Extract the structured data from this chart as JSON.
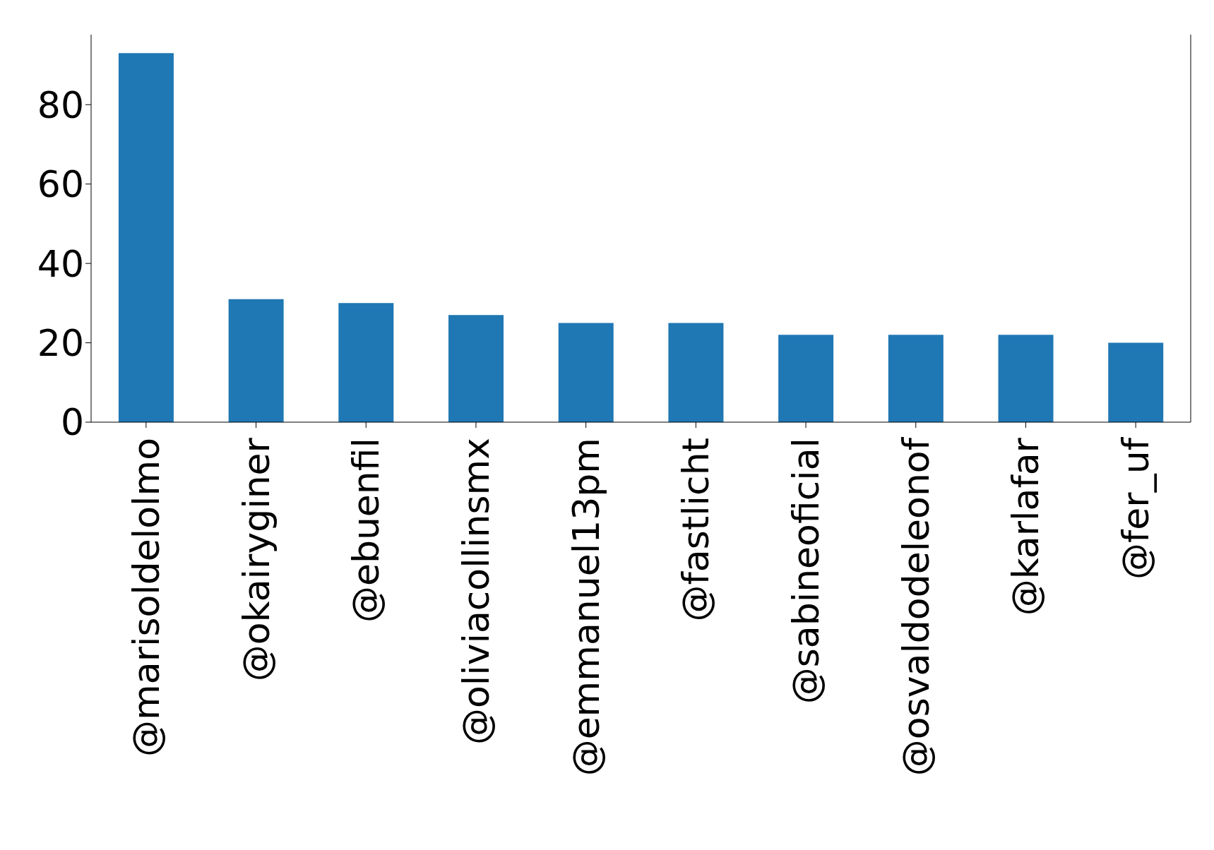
{
  "chart_data": {
    "type": "bar",
    "categories": [
      "@marisoldelolmo",
      "@okairyginer",
      "@ebuenfil",
      "@oliviacollinsmx",
      "@emmanuel13pm",
      "@fastlicht",
      "@sabineoficial",
      "@osvaldodeleonof",
      "@karlafar",
      "@fer_uf"
    ],
    "values": [
      93,
      31,
      30,
      27,
      25,
      25,
      22,
      22,
      22,
      20
    ],
    "color": "#1f77b4",
    "ylim": [
      0,
      97.65
    ],
    "yticks": [
      0,
      20,
      40,
      60,
      80
    ],
    "grid": false,
    "legend": false
  }
}
